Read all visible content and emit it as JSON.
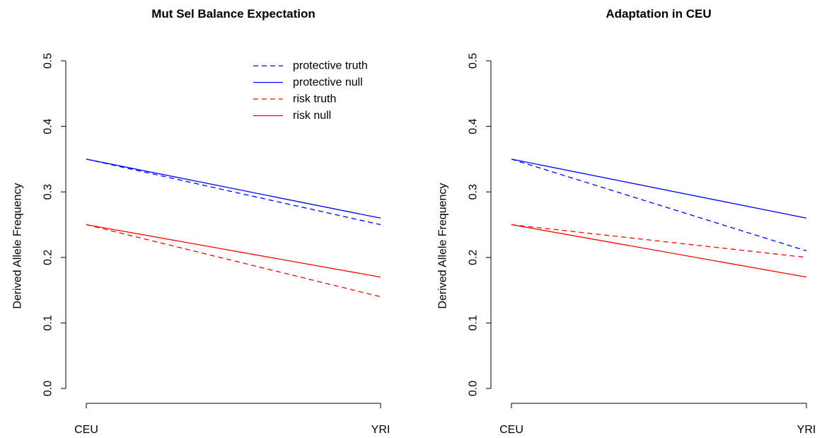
{
  "chart_data": [
    {
      "type": "line",
      "title": "Mut Sel Balance Expectation",
      "xlabel": "",
      "ylabel": "Derived Allele Frequency",
      "categories": [
        "CEU",
        "YRI"
      ],
      "ylim": [
        0,
        0.5
      ],
      "yticks": [
        "0.0",
        "0.1",
        "0.2",
        "0.3",
        "0.4",
        "0.5"
      ],
      "grid": false,
      "legend_position": "top-right",
      "series": [
        {
          "name": "protective truth",
          "values": [
            0.35,
            0.25
          ],
          "color": "#0000ff",
          "dash": "dashed"
        },
        {
          "name": "protective null",
          "values": [
            0.35,
            0.26
          ],
          "color": "#0000ff",
          "dash": "solid"
        },
        {
          "name": "risk truth",
          "values": [
            0.25,
            0.14
          ],
          "color": "#ff0000",
          "dash": "dashed"
        },
        {
          "name": "risk null",
          "values": [
            0.25,
            0.17
          ],
          "color": "#ff0000",
          "dash": "solid"
        }
      ]
    },
    {
      "type": "line",
      "title": "Adaptation in CEU",
      "xlabel": "",
      "ylabel": "Derived Allele Frequency",
      "categories": [
        "CEU",
        "YRI"
      ],
      "ylim": [
        0,
        0.5
      ],
      "yticks": [
        "0.0",
        "0.1",
        "0.2",
        "0.3",
        "0.4",
        "0.5"
      ],
      "grid": false,
      "legend_position": "none",
      "series": [
        {
          "values": [
            0.35,
            0.21
          ],
          "color": "#0000ff",
          "dash": "dashed"
        },
        {
          "values": [
            0.35,
            0.26
          ],
          "color": "#0000ff",
          "dash": "solid"
        },
        {
          "values": [
            0.25,
            0.2
          ],
          "color": "#ff0000",
          "dash": "dashed"
        },
        {
          "values": [
            0.25,
            0.17
          ],
          "color": "#ff0000",
          "dash": "solid"
        }
      ]
    }
  ]
}
